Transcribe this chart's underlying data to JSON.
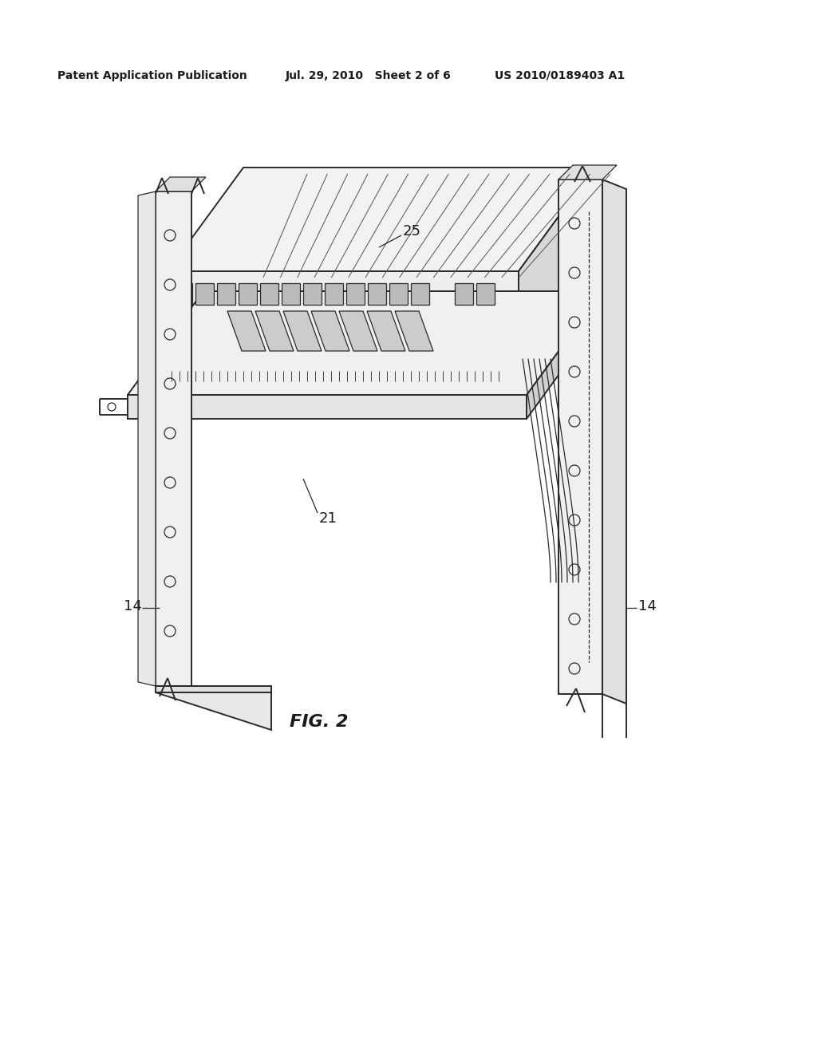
{
  "bg_color": "#ffffff",
  "line_color": "#2a2a2a",
  "lw": 1.4,
  "lw_thin": 0.9,
  "lw_thick": 2.0,
  "header_text": "Patent Application Publication",
  "header_date": "Jul. 29, 2010   Sheet 2 of 6",
  "header_patent": "US 2010/0189403 A1",
  "fig_label": "FIG. 2"
}
